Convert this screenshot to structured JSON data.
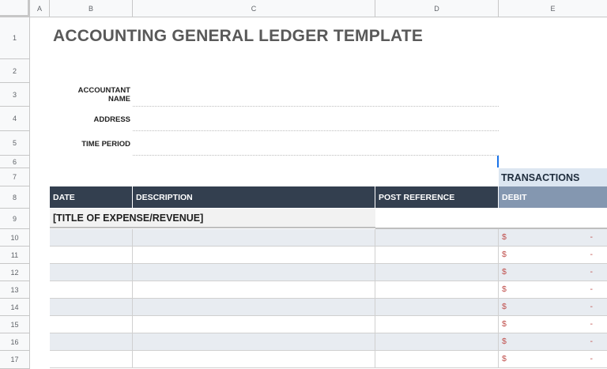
{
  "columns": [
    "A",
    "B",
    "C",
    "D",
    "E"
  ],
  "rows": [
    "1",
    "2",
    "3",
    "4",
    "5",
    "6",
    "7",
    "8",
    "9",
    "10",
    "11",
    "12",
    "13",
    "14",
    "15",
    "16",
    "17"
  ],
  "title": "ACCOUNTING GENERAL LEDGER TEMPLATE",
  "fields": {
    "accountant_name_line1": "ACCOUNTANT",
    "accountant_name_line2": "NAME",
    "address": "ADDRESS",
    "time_period": "TIME PERIOD"
  },
  "transactions_label": "TRANSACTIONS",
  "table_headers": {
    "date": "DATE",
    "description": "DESCRIPTION",
    "post_reference": "POST REFERENCE",
    "debit": "DEBIT"
  },
  "section_title": "[TITLE OF EXPENSE/REVENUE]",
  "currency_symbol": "$",
  "empty_amount": "-",
  "data_rows": 8,
  "colors": {
    "header_dark": "#333f4f",
    "header_debit": "#8497b0",
    "transactions_bg": "#dce6f1",
    "currency_red": "#c0504d"
  }
}
